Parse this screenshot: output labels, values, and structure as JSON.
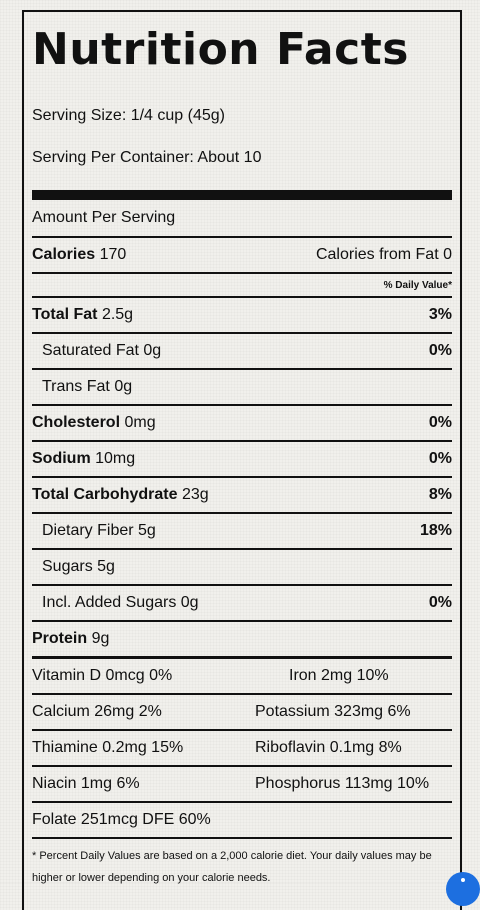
{
  "title": "Nutrition Facts",
  "serving_size": "Serving Size: 1/4 cup (45g)",
  "serving_per_container": "Serving Per Container: About 10",
  "amount_per_serving": "Amount Per Serving",
  "calories": {
    "label": "Calories",
    "value": "170",
    "from_fat": "Calories from Fat 0"
  },
  "daily_value_header": "% Daily Value*",
  "nutrients": [
    {
      "label": "Total Fat",
      "amount": "2.5g",
      "dv": "3%"
    },
    {
      "label": "Saturated Fat",
      "amount": "0g",
      "dv": "0%"
    },
    {
      "label": "Trans Fat",
      "amount": "0g",
      "dv": ""
    },
    {
      "label": "Cholesterol",
      "amount": "0mg",
      "dv": "0%"
    },
    {
      "label": "Sodium",
      "amount": "10mg",
      "dv": "0%"
    },
    {
      "label": "Total Carbohydrate",
      "amount": "23g",
      "dv": "8%"
    },
    {
      "label": "Dietary Fiber",
      "amount": "5g",
      "dv": "18%"
    },
    {
      "label": "Sugars",
      "amount": "5g",
      "dv": ""
    },
    {
      "label": "Incl. Added Sugars",
      "amount": "0g",
      "dv": "0%"
    },
    {
      "label": "Protein",
      "amount": "9g",
      "dv": ""
    }
  ],
  "vitamins": [
    [
      "Vitamin D 0mcg 0%",
      "Iron 2mg 10%"
    ],
    [
      "Calcium 26mg 2%",
      "Potassium 323mg 6%"
    ],
    [
      "Thiamine 0.2mg 15%",
      "Riboflavin 0.1mg 8%"
    ],
    [
      "Niacin 1mg 6%",
      "Phosphorus 113mg 10%"
    ],
    [
      "Folate 251mcg DFE 60%",
      ""
    ]
  ],
  "footnote": "* Percent Daily Values are based on a 2,000 calorie diet. Your daily values may be higher or lower depending on your calorie needs.",
  "colors": {
    "border": "#111111",
    "background": "#f1f0ec",
    "chat_bubble": "#1d6fe0"
  }
}
